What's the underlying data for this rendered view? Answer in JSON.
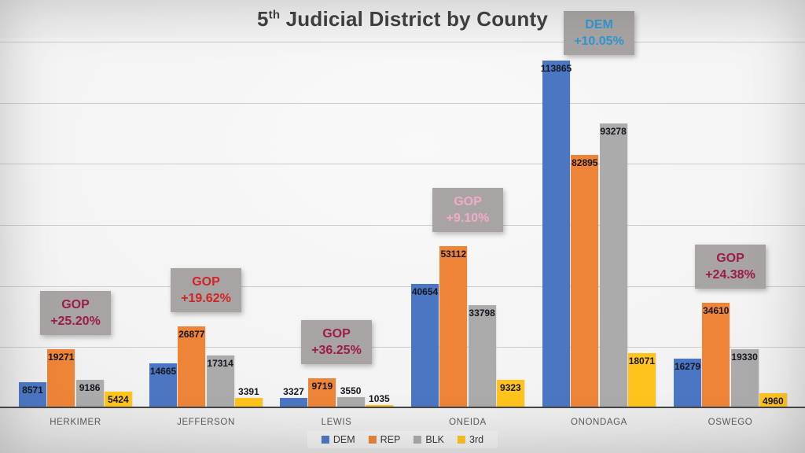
{
  "chart_data": {
    "type": "bar",
    "title": "5th Judicial District by County",
    "title_parts": {
      "num": "5",
      "sup": "th",
      "rest": " Judicial District by County"
    },
    "categories": [
      "HERKIMER",
      "JEFFERSON",
      "LEWIS",
      "ONEIDA",
      "ONONDAGA",
      "OSWEGO"
    ],
    "series": [
      {
        "name": "DEM",
        "color": "#4b76c4",
        "values": [
          8571,
          14665,
          3327,
          40654,
          113865,
          16279
        ]
      },
      {
        "name": "REP",
        "color": "#ee8438",
        "values": [
          19271,
          26877,
          9719,
          53112,
          82895,
          34610
        ]
      },
      {
        "name": "BLK",
        "color": "#ababab",
        "values": [
          9186,
          17314,
          3550,
          33798,
          93278,
          19330
        ]
      },
      {
        "name": "3rd",
        "color": "#ffc41c",
        "values": [
          5424,
          3391,
          1035,
          9323,
          18071,
          4960
        ]
      }
    ],
    "value_labels_shown": true,
    "ylim": [
      0,
      120000
    ],
    "gridline_interval": 20000,
    "grid": true,
    "legend_position": "bottom",
    "annotations": [
      {
        "category": "HERKIMER",
        "line1": "GOP",
        "line2": "+25.20%",
        "text_color": "#9c1b49"
      },
      {
        "category": "JEFFERSON",
        "line1": "GOP",
        "line2": "+19.62%",
        "text_color": "#ce2525"
      },
      {
        "category": "LEWIS",
        "line1": "GOP",
        "line2": "+36.25%",
        "text_color": "#9c1b49"
      },
      {
        "category": "ONEIDA",
        "line1": "GOP",
        "line2": "+9.10%",
        "text_color": "#f2abc9"
      },
      {
        "category": "ONONDAGA",
        "line1": "DEM",
        "line2": "+10.05%",
        "text_color": "#2e97d4"
      },
      {
        "category": "OSWEGO",
        "line1": "GOP",
        "line2": "+24.38%",
        "text_color": "#9c1b49"
      }
    ],
    "annotation_box_color": "#a8a4a3",
    "gridline_color": "#cccbca",
    "axis_line_color": "#454545",
    "value_label_color": "#16161f",
    "category_label_color": "#595959"
  }
}
